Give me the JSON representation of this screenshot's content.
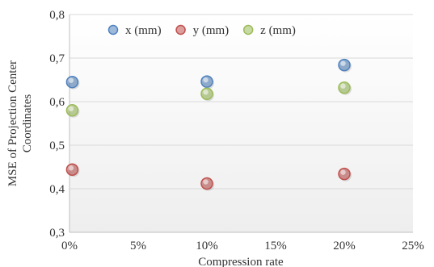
{
  "chart_data": {
    "type": "scatter",
    "title": "",
    "xlabel": "Compression rate",
    "ylabel": "MSE of Projection Center Coordinates",
    "xlim": [
      0,
      0.25
    ],
    "ylim": [
      0.3,
      0.8
    ],
    "x_ticks": [
      "0%",
      "5%",
      "10%",
      "15%",
      "20%",
      "25%"
    ],
    "y_ticks": [
      "0,3",
      "0,4",
      "0,5",
      "0,6",
      "0,7",
      "0,8"
    ],
    "grid": "horizontal",
    "legend_position": "top-left",
    "series": [
      {
        "name": "x (mm)",
        "color": "#4f81bd",
        "x": [
          0.002,
          0.1,
          0.2
        ],
        "y": [
          0.645,
          0.646,
          0.684
        ]
      },
      {
        "name": "y (mm)",
        "color": "#c0504d",
        "x": [
          0.002,
          0.1,
          0.2
        ],
        "y": [
          0.444,
          0.412,
          0.434
        ]
      },
      {
        "name": "z (mm)",
        "color": "#9bbb59",
        "x": [
          0.002,
          0.1,
          0.2
        ],
        "y": [
          0.58,
          0.618,
          0.632
        ]
      }
    ]
  }
}
